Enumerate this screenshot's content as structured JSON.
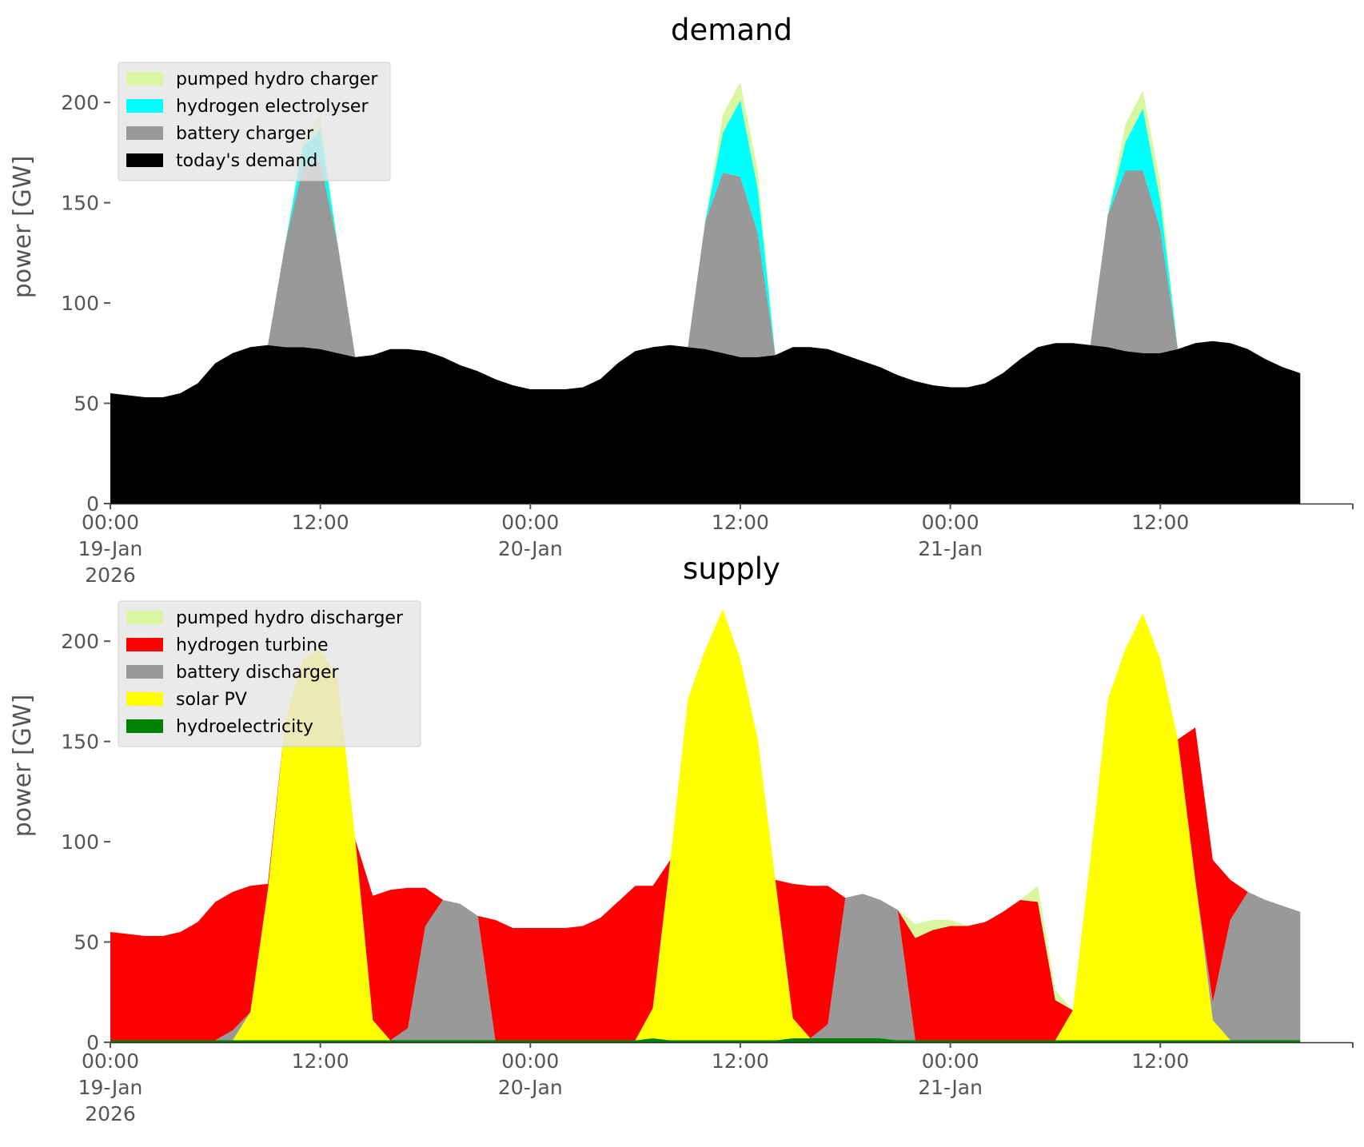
{
  "chart_data": [
    {
      "type": "area",
      "stacked": true,
      "title": "demand",
      "ylabel": "power [GW]",
      "xlabel": "",
      "ylim": [
        0,
        220
      ],
      "xlim": [
        0,
        71
      ],
      "x_unit": "hours from 00:00 19-Jan-2026",
      "yticks": [
        0,
        50,
        100,
        150,
        200
      ],
      "xticks": [
        {
          "x": 0,
          "lines": [
            "00:00",
            "19-Jan",
            "2026"
          ]
        },
        {
          "x": 12,
          "lines": [
            "12:00"
          ]
        },
        {
          "x": 24,
          "lines": [
            "00:00",
            "20-Jan"
          ]
        },
        {
          "x": 36,
          "lines": [
            "12:00"
          ]
        },
        {
          "x": 48,
          "lines": [
            "00:00",
            "21-Jan"
          ]
        },
        {
          "x": 60,
          "lines": [
            "12:00"
          ]
        }
      ],
      "legend": [
        "pumped hydro charger",
        "hydrogen electrolyser",
        "battery charger",
        "today's demand"
      ],
      "series": [
        {
          "name": "today's demand",
          "color": "#000000",
          "values": [
            55,
            54,
            53,
            53,
            55,
            60,
            70,
            75,
            78,
            79,
            78,
            78,
            77,
            75,
            73,
            74,
            77,
            77,
            76,
            73,
            69,
            66,
            62,
            59,
            57,
            57,
            57,
            58,
            62,
            70,
            76,
            78,
            79,
            78,
            77,
            75,
            73,
            73,
            74,
            78,
            78,
            77,
            74,
            71,
            68,
            64,
            61,
            59,
            58,
            58,
            60,
            65,
            72,
            78,
            80,
            80,
            79,
            78,
            76,
            75,
            75,
            77,
            80,
            81,
            80,
            77,
            72,
            68,
            65
          ]
        },
        {
          "name": "battery charger",
          "color": "#999999",
          "values": [
            0,
            0,
            0,
            0,
            0,
            0,
            0,
            0,
            0,
            0,
            52,
            90,
            94,
            54,
            0,
            0,
            0,
            0,
            0,
            0,
            0,
            0,
            0,
            0,
            0,
            0,
            0,
            0,
            0,
            0,
            0,
            0,
            0,
            0,
            64,
            90,
            90,
            62,
            0,
            0,
            0,
            0,
            0,
            0,
            0,
            0,
            0,
            0,
            0,
            0,
            0,
            0,
            0,
            0,
            0,
            0,
            0,
            66,
            90,
            91,
            62,
            0,
            0,
            0,
            0,
            0,
            0,
            0,
            0
          ]
        },
        {
          "name": "hydrogen electrolyser",
          "color": "#00ffff",
          "values": [
            0,
            0,
            0,
            0,
            0,
            0,
            0,
            0,
            0,
            0,
            0,
            10,
            15,
            0,
            0,
            0,
            0,
            0,
            0,
            0,
            0,
            0,
            0,
            0,
            0,
            0,
            0,
            0,
            0,
            0,
            0,
            0,
            0,
            0,
            0,
            20,
            38,
            22,
            0,
            0,
            0,
            0,
            0,
            0,
            0,
            0,
            0,
            0,
            0,
            0,
            0,
            0,
            0,
            0,
            0,
            0,
            0,
            0,
            14,
            31,
            14,
            0,
            0,
            0,
            0,
            0,
            0,
            0,
            0
          ]
        },
        {
          "name": "pumped hydro charger",
          "color": "#d9f7a1",
          "values": [
            0,
            0,
            0,
            0,
            0,
            0,
            0,
            0,
            0,
            0,
            0,
            3,
            8,
            0,
            0,
            0,
            0,
            0,
            0,
            0,
            0,
            0,
            0,
            0,
            0,
            0,
            0,
            0,
            0,
            0,
            0,
            0,
            0,
            0,
            0,
            9,
            9,
            9,
            0,
            0,
            0,
            0,
            0,
            0,
            0,
            0,
            0,
            0,
            0,
            0,
            0,
            0,
            0,
            0,
            0,
            0,
            0,
            0,
            9,
            9,
            9,
            0,
            0,
            0,
            0,
            0,
            0,
            0,
            0
          ]
        }
      ]
    },
    {
      "type": "area",
      "stacked": true,
      "title": "supply",
      "ylabel": "power [GW]",
      "xlabel": "",
      "ylim": [
        0,
        220
      ],
      "xlim": [
        0,
        71
      ],
      "x_unit": "hours from 00:00 19-Jan-2026",
      "yticks": [
        0,
        50,
        100,
        150,
        200
      ],
      "xticks": [
        {
          "x": 0,
          "lines": [
            "00:00",
            "19-Jan",
            "2026"
          ]
        },
        {
          "x": 12,
          "lines": [
            "12:00"
          ]
        },
        {
          "x": 24,
          "lines": [
            "00:00",
            "20-Jan"
          ]
        },
        {
          "x": 36,
          "lines": [
            "12:00"
          ]
        },
        {
          "x": 48,
          "lines": [
            "00:00",
            "21-Jan"
          ]
        },
        {
          "x": 60,
          "lines": [
            "12:00"
          ]
        }
      ],
      "legend": [
        "pumped hydro discharger",
        "hydrogen turbine",
        "battery discharger",
        "solar PV",
        "hydroelectricity"
      ],
      "series": [
        {
          "name": "hydroelectricity",
          "color": "#008000",
          "values": [
            1,
            1,
            1,
            1,
            1,
            1,
            1,
            1,
            1,
            1,
            1,
            1,
            1,
            1,
            1,
            1,
            1,
            1,
            1,
            1,
            1,
            1,
            1,
            1,
            1,
            1,
            1,
            1,
            1,
            1,
            1,
            2,
            1,
            1,
            1,
            1,
            1,
            1,
            1,
            2,
            2,
            2,
            2,
            2,
            2,
            1,
            1,
            1,
            1,
            1,
            1,
            1,
            1,
            1,
            1,
            1,
            1,
            1,
            1,
            1,
            1,
            1,
            1,
            1,
            1,
            1,
            1,
            1,
            1
          ]
        },
        {
          "name": "solar PV",
          "color": "#ffff00",
          "values": [
            0,
            0,
            0,
            0,
            0,
            0,
            0,
            0,
            14,
            75,
            160,
            190,
            195,
            180,
            100,
            10,
            0,
            0,
            0,
            0,
            0,
            0,
            0,
            0,
            0,
            0,
            0,
            0,
            0,
            0,
            0,
            15,
            90,
            170,
            195,
            215,
            190,
            150,
            80,
            10,
            0,
            0,
            0,
            0,
            0,
            0,
            0,
            0,
            0,
            0,
            0,
            0,
            0,
            0,
            0,
            15,
            90,
            170,
            195,
            213,
            190,
            150,
            80,
            10,
            0,
            0,
            0,
            0,
            0
          ]
        },
        {
          "name": "battery discharger",
          "color": "#999999",
          "values": [
            0,
            0,
            0,
            0,
            0,
            0,
            0,
            5,
            0,
            0,
            0,
            0,
            0,
            0,
            0,
            0,
            0,
            6,
            57,
            70,
            68,
            62,
            0,
            0,
            0,
            0,
            0,
            0,
            0,
            0,
            0,
            0,
            0,
            0,
            0,
            0,
            0,
            0,
            0,
            0,
            0,
            7,
            70,
            72,
            69,
            65,
            0,
            0,
            0,
            0,
            0,
            0,
            0,
            0,
            0,
            0,
            0,
            0,
            0,
            0,
            0,
            0,
            0,
            9,
            60,
            74,
            70,
            67,
            64
          ]
        },
        {
          "name": "hydrogen turbine",
          "color": "#ff0000",
          "values": [
            54,
            53,
            52,
            52,
            54,
            59,
            69,
            69,
            63,
            3,
            0,
            0,
            0,
            0,
            0,
            62,
            75,
            70,
            19,
            0,
            0,
            0,
            60,
            56,
            56,
            56,
            56,
            57,
            61,
            69,
            77,
            61,
            0,
            0,
            0,
            0,
            0,
            0,
            0,
            67,
            76,
            69,
            0,
            0,
            0,
            0,
            51,
            55,
            57,
            57,
            59,
            64,
            70,
            69,
            20,
            0,
            0,
            0,
            0,
            0,
            0,
            0,
            76,
            71,
            20,
            0,
            0,
            0,
            0
          ]
        },
        {
          "name": "pumped hydro discharger",
          "color": "#d9f7a1",
          "values": [
            0,
            0,
            0,
            0,
            0,
            0,
            0,
            0,
            0,
            0,
            0,
            0,
            0,
            0,
            0,
            0,
            0,
            0,
            0,
            0,
            0,
            0,
            0,
            0,
            0,
            0,
            0,
            0,
            0,
            0,
            0,
            0,
            0,
            0,
            0,
            0,
            0,
            0,
            0,
            0,
            0,
            0,
            0,
            0,
            0,
            0,
            7,
            5,
            3,
            0,
            0,
            0,
            0,
            8,
            5,
            0,
            0,
            0,
            0,
            0,
            0,
            0,
            0,
            0,
            0,
            0,
            0,
            0,
            0
          ]
        }
      ]
    }
  ]
}
